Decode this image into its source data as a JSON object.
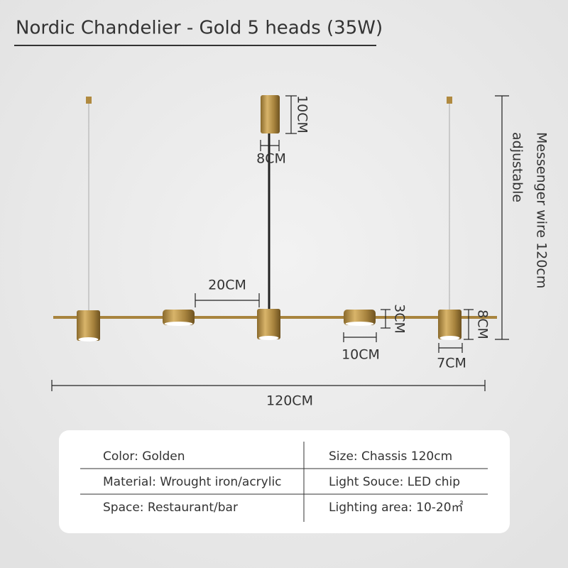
{
  "title": "Nordic Chandelier - Gold 5 heads (35W)",
  "dimensions": {
    "canopy_height": "10CM",
    "canopy_width": "8CM",
    "head_spacing": "20CM",
    "disc_height": "3CM",
    "disc_width": "10CM",
    "cylinder_height": "8CM",
    "cylinder_width": "7CM",
    "total_length": "120CM",
    "wire": [
      "Messenger wire 120cm",
      "adjustable"
    ]
  },
  "table": {
    "rows": [
      [
        "Color: Golden",
        "Size: Chassis 120cm"
      ],
      [
        "Material: Wrought iron/acrylic",
        "Light Souce:  LED chip"
      ],
      [
        "Space:  Restaurant/bar",
        "Lighting area: 10-20㎡"
      ]
    ]
  }
}
